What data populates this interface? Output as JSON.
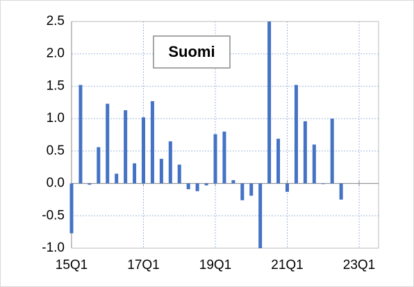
{
  "chart_data": {
    "type": "bar",
    "title": "Suomi",
    "categories": [
      "15Q1",
      null,
      null,
      null,
      null,
      null,
      null,
      null,
      "17Q1",
      null,
      null,
      null,
      null,
      null,
      null,
      null,
      "19Q1",
      null,
      null,
      null,
      null,
      null,
      null,
      null,
      "21Q1",
      null,
      null,
      null,
      null,
      null,
      null,
      null,
      "23Q1",
      null,
      null
    ],
    "values": [
      -0.77,
      1.52,
      -0.02,
      0.56,
      1.23,
      0.15,
      1.13,
      0.31,
      1.02,
      1.27,
      0.38,
      0.65,
      0.29,
      -0.09,
      -0.12,
      -0.03,
      0.76,
      0.8,
      0.05,
      -0.26,
      -0.19,
      -1.0,
      2.5,
      0.69,
      -0.13,
      1.52,
      0.96,
      0.6,
      -0.01,
      1.0,
      -0.25,
      null,
      null,
      null,
      null
    ],
    "color": "#4472c4",
    "ylim": [
      -1.0,
      2.5
    ],
    "yticks": [
      {
        "value": -1.0,
        "label": "-1.0"
      },
      {
        "value": -0.5,
        "label": "-0.5"
      },
      {
        "value": 0.0,
        "label": "0.0"
      },
      {
        "value": 0.5,
        "label": "0.5"
      },
      {
        "value": 1.0,
        "label": "1.0"
      },
      {
        "value": 1.5,
        "label": "1.5"
      },
      {
        "value": 2.0,
        "label": "2.0"
      },
      {
        "value": 2.5,
        "label": "2.5"
      }
    ],
    "grid": true
  }
}
